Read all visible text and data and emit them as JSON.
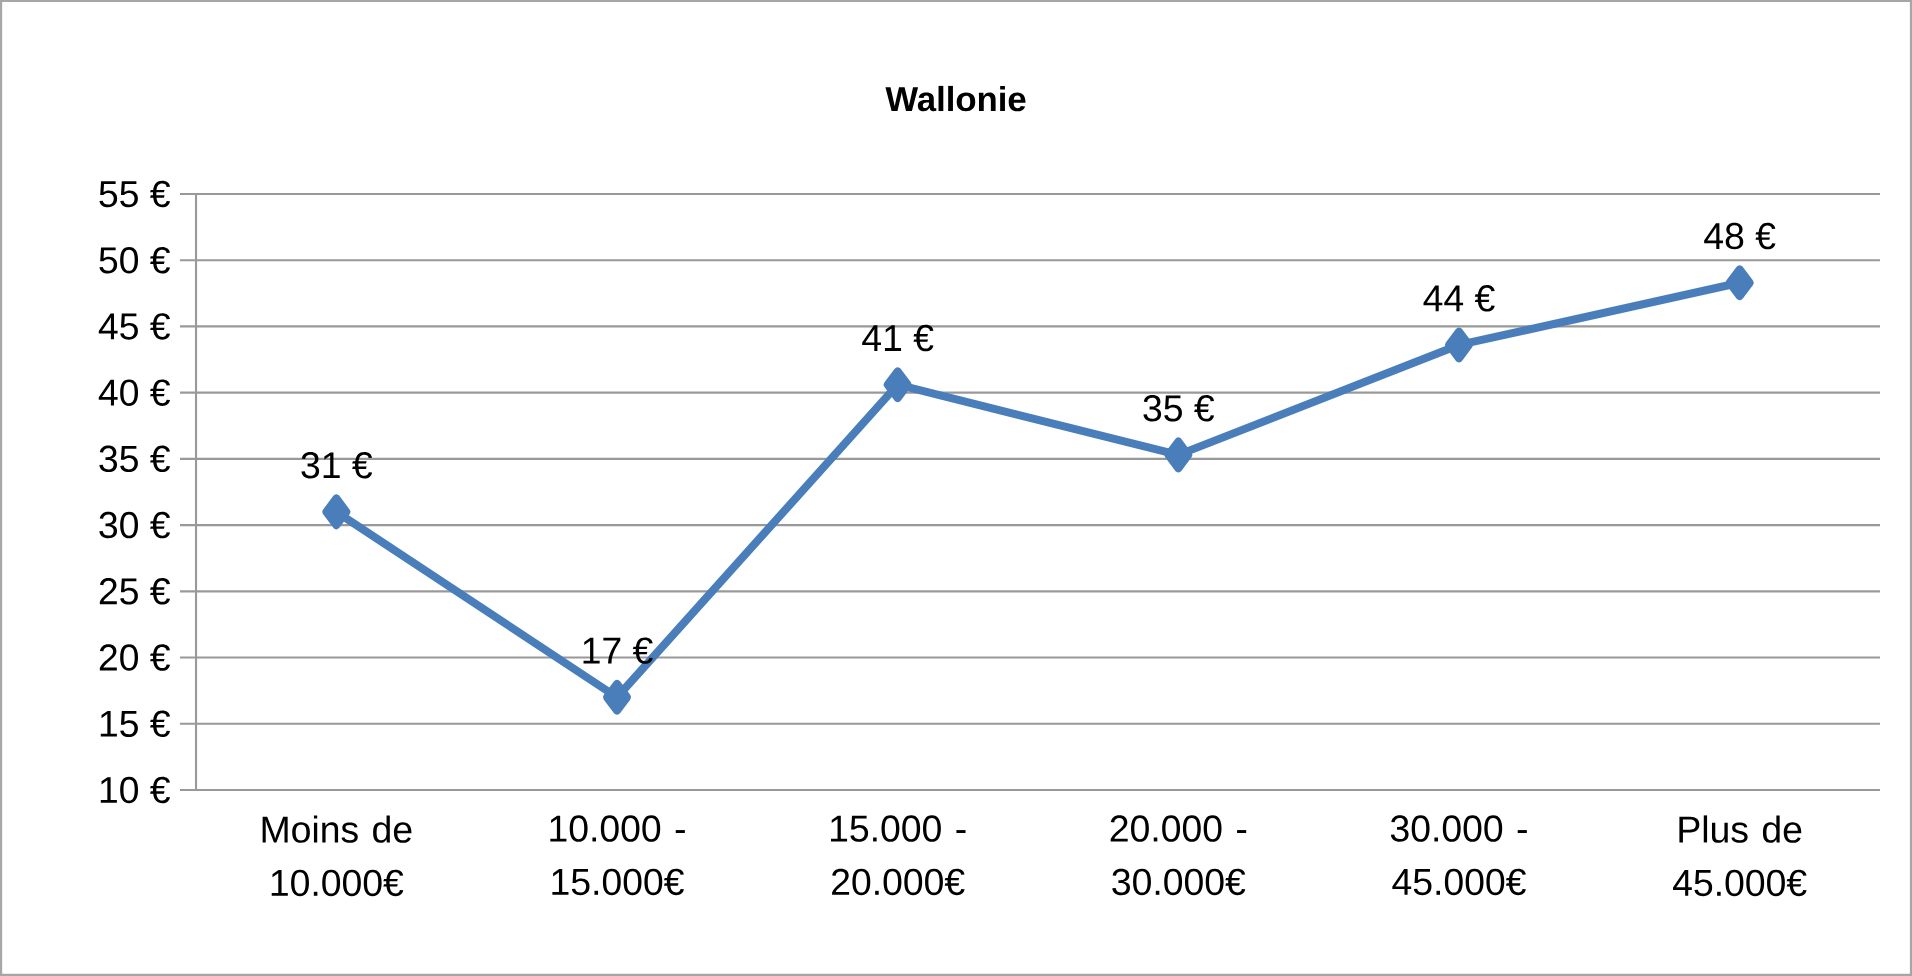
{
  "chart_data": {
    "type": "line",
    "title": "Wallonie",
    "categories": [
      "Moins de 10.000€",
      "10.000 - 15.000€",
      "15.000 - 20.000€",
      "20.000 - 30.000€",
      "30.000 - 45.000€",
      "Plus de 45.000€"
    ],
    "values": [
      31,
      17,
      40.6,
      35.3,
      43.6,
      48.3
    ],
    "value_labels": [
      "31 €",
      "17 €",
      "41 €",
      "35 €",
      "44 €",
      "48 €"
    ],
    "color": "#4a7ebb",
    "marker": "diamond",
    "line_style": "solid",
    "grid": "y",
    "ylim": [
      10,
      55
    ],
    "yticks": [
      {
        "value": 10,
        "label": "10 €"
      },
      {
        "value": 15,
        "label": "15 €"
      },
      {
        "value": 20,
        "label": "20 €"
      },
      {
        "value": 25,
        "label": "25 €"
      },
      {
        "value": 30,
        "label": "30 €"
      },
      {
        "value": 35,
        "label": "35 €"
      },
      {
        "value": 40,
        "label": "40 €"
      },
      {
        "value": 45,
        "label": "45 €"
      },
      {
        "value": 50,
        "label": "50 €"
      },
      {
        "value": 55,
        "label": "55 €"
      }
    ]
  }
}
